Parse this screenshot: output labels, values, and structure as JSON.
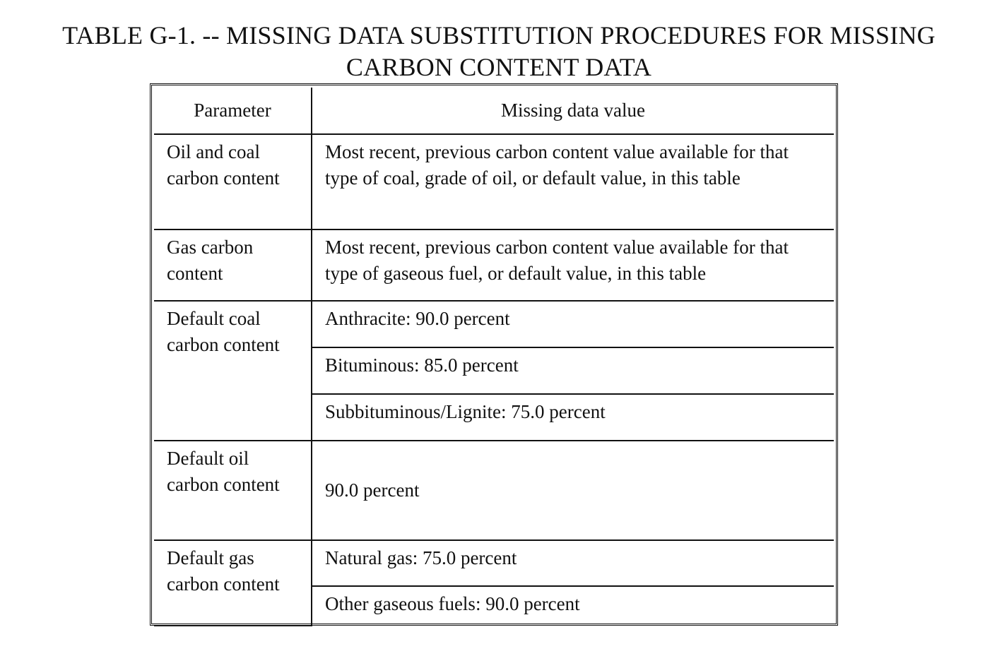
{
  "title": {
    "line1": "TABLE G-1. -- MISSING DATA SUBSTITUTION PROCEDURES FOR MISSING",
    "line2": "CARBON CONTENT DATA"
  },
  "table": {
    "headers": {
      "parameter": "Parameter",
      "value": "Missing data value"
    },
    "rows": [
      {
        "parameter": "Oil and coal carbon content",
        "values": [
          "Most recent, previous carbon content value available for that type of coal, grade of oil, or default value, in this table"
        ]
      },
      {
        "parameter": "Gas carbon content",
        "values": [
          "Most recent, previous carbon content value available for that type of gaseous fuel, or default value, in this table"
        ]
      },
      {
        "parameter": "Default coal carbon content",
        "values": [
          "Anthracite:  90.0 percent",
          "Bituminous:  85.0 percent",
          "Subbituminous/Lignite:  75.0 percent"
        ]
      },
      {
        "parameter": "Default oil carbon content",
        "values": [
          "90.0 percent"
        ]
      },
      {
        "parameter": "Default gas carbon content",
        "values": [
          "Natural gas:  75.0 percent",
          "Other gaseous fuels:  90.0 percent"
        ]
      }
    ]
  }
}
